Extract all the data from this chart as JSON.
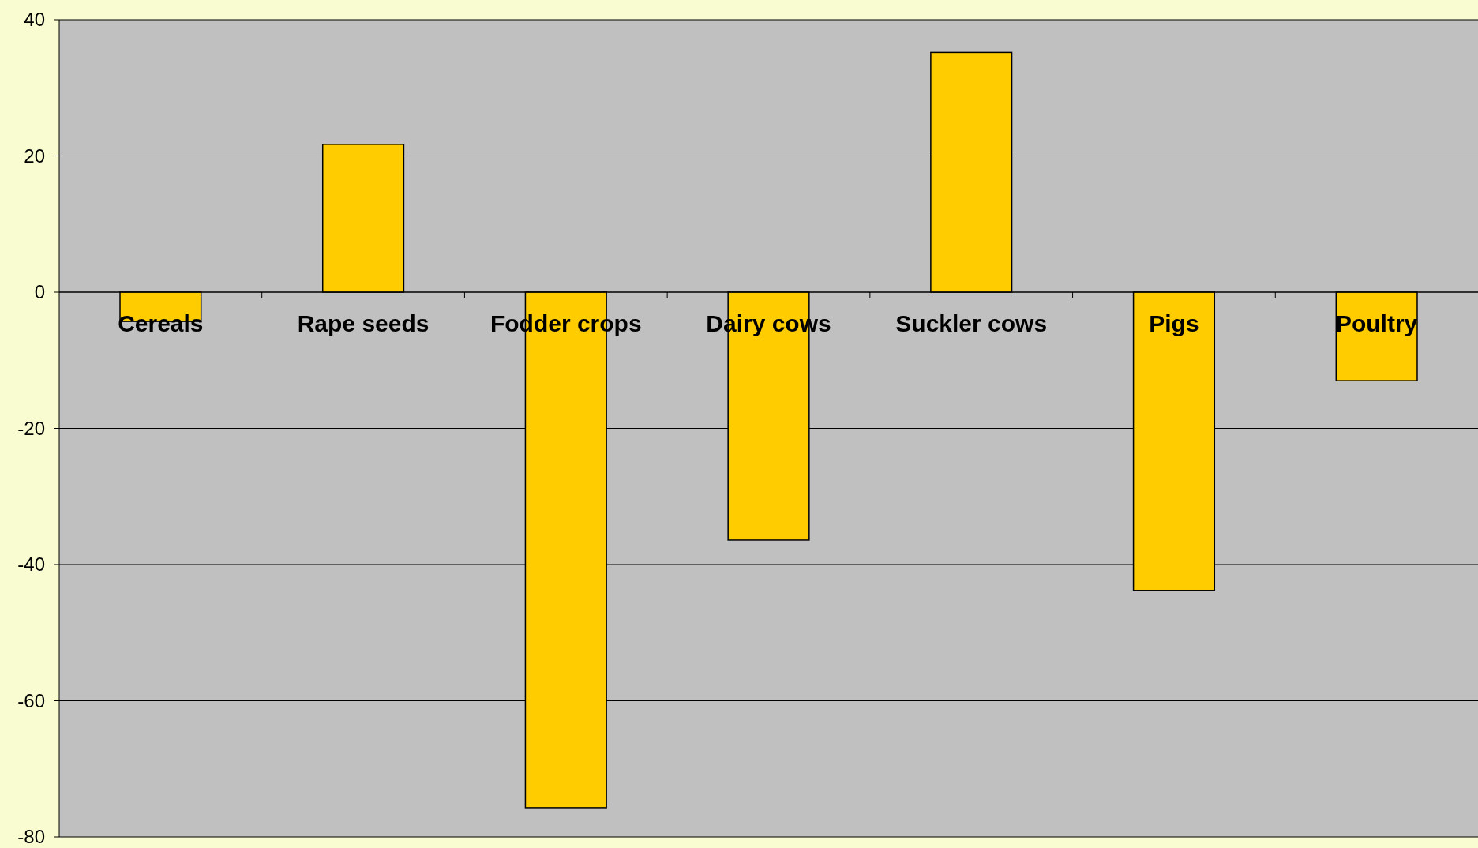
{
  "chart_data": {
    "type": "bar",
    "categories": [
      "Cereals",
      "Rape seeds",
      "Fodder crops",
      "Dairy cows",
      "Suckler cows",
      "Pigs",
      "Poultry"
    ],
    "values": [
      -4.3,
      21.7,
      -75.7,
      -36.4,
      35.2,
      -43.8,
      -13.0
    ],
    "color": "#ffcc00",
    "ylim": [
      -80,
      40
    ],
    "yticks": [
      -80,
      -60,
      -40,
      -20,
      0,
      20,
      40
    ],
    "grid": "y"
  }
}
